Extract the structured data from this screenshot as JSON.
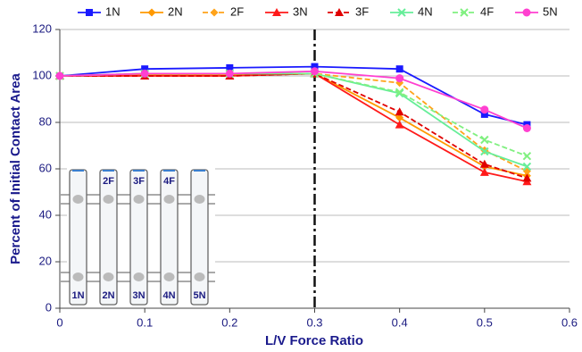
{
  "chart_data": {
    "type": "line",
    "x_label": "L/V Force Ratio",
    "y_label": "Percent of Initial Contact Area",
    "x": [
      0,
      0.1,
      0.2,
      0.3,
      0.4,
      0.5,
      0.55
    ],
    "series": [
      {
        "name": "1N",
        "color": "#1a1aff",
        "marker": "square",
        "dash": false,
        "values": [
          100,
          103,
          103.5,
          104,
          103,
          83.5,
          79
        ]
      },
      {
        "name": "2N",
        "color": "#ff9900",
        "marker": "diamond",
        "dash": false,
        "values": [
          100,
          100.5,
          100.5,
          101,
          82,
          61,
          57
        ]
      },
      {
        "name": "2F",
        "color": "#ffa31a",
        "marker": "diamond",
        "dash": true,
        "values": [
          100,
          100.5,
          100.5,
          101,
          97,
          68,
          59
        ]
      },
      {
        "name": "3N",
        "color": "#ff1a1a",
        "marker": "triangle",
        "dash": false,
        "values": [
          100,
          100,
          100,
          101,
          79,
          58.5,
          54.5
        ]
      },
      {
        "name": "3F",
        "color": "#e00000",
        "marker": "triangle",
        "dash": true,
        "values": [
          100,
          100,
          100,
          101,
          84.5,
          62,
          56
        ]
      },
      {
        "name": "4N",
        "color": "#66ee99",
        "marker": "x",
        "dash": false,
        "values": [
          100,
          101,
          101,
          101,
          92.5,
          67.5,
          61
        ]
      },
      {
        "name": "4F",
        "color": "#80f080",
        "marker": "x",
        "dash": true,
        "values": [
          100,
          101,
          101,
          101,
          93,
          72.5,
          65.5
        ]
      },
      {
        "name": "5N",
        "color": "#ff40d0",
        "marker": "circle",
        "dash": false,
        "values": [
          100,
          101,
          101,
          102,
          99,
          85.5,
          77.5
        ]
      }
    ],
    "xlim": [
      0,
      0.6
    ],
    "xticks": [
      0,
      0.1,
      0.2,
      0.3,
      0.4,
      0.5,
      0.6
    ],
    "ylim": [
      0,
      120
    ],
    "yticks": [
      0,
      20,
      40,
      60,
      80,
      100,
      120
    ],
    "grid": true,
    "reference_x": 0.3,
    "legend": "top",
    "inset": {
      "top_labels": [
        "2F",
        "3F",
        "4F"
      ],
      "bottom_labels": [
        "1N",
        "2N",
        "3N",
        "4N",
        "5N"
      ]
    }
  }
}
